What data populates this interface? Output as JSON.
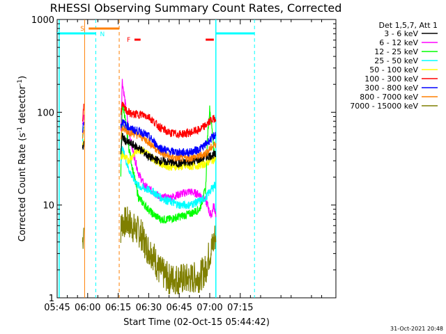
{
  "chart_data": {
    "type": "line",
    "title": "RHESSI Observing Summary Count Rates, Corrected",
    "xlabel": "Start Time (02-Oct-15 05:44:42)",
    "ylabel_main": "Corrected Count Rate (s",
    "ylabel_sup1": "-1",
    "ylabel_mid": " detector",
    "ylabel_sup2": "-1",
    "ylabel_end": ")",
    "yscale": "log",
    "ylim": [
      1,
      1000
    ],
    "xlim_min": [
      345,
      482
    ],
    "x_ticks": [
      {
        "min": 345,
        "label": "05:45"
      },
      {
        "min": 360,
        "label": "06:00"
      },
      {
        "min": 375,
        "label": "06:15"
      },
      {
        "min": 390,
        "label": "06:30"
      },
      {
        "min": 405,
        "label": "06:45"
      },
      {
        "min": 420,
        "label": "07:00"
      },
      {
        "min": 435,
        "label": "07:15"
      }
    ],
    "y_ticks": [
      {
        "value": 1,
        "label": "1"
      },
      {
        "value": 10,
        "label": "10"
      },
      {
        "value": 100,
        "label": "100"
      },
      {
        "value": 1000,
        "label": "1000"
      }
    ],
    "legend_header": "Det 1,5,7, Att 1",
    "legend_placement": "right",
    "footer_date": "31-Oct-2021 20:48",
    "series": [
      {
        "name": "3 - 6 keV",
        "color": "#000000",
        "x": [
          357.5,
          358.2,
          376.3,
          377,
          379,
          382,
          386,
          390,
          395,
          400,
          405,
          410,
          415,
          418,
          420,
          422,
          423
        ],
        "y": [
          40,
          46,
          38,
          55,
          48,
          45,
          40,
          33,
          30,
          29,
          28,
          29,
          31,
          33,
          34,
          35,
          34
        ]
      },
      {
        "name": "6 - 12 keV",
        "color": "#ff00ff",
        "x": [
          357.5,
          358.2,
          376.3,
          377,
          378,
          380,
          382,
          385,
          388,
          392,
          396,
          400,
          405,
          410,
          415,
          417,
          419,
          420,
          421,
          422,
          423
        ],
        "y": [
          70,
          100,
          60,
          220,
          150,
          70,
          40,
          22,
          16,
          14,
          12,
          12,
          13,
          14,
          13,
          12,
          10,
          8,
          8,
          10,
          8
        ]
      },
      {
        "name": "12 - 25 keV",
        "color": "#00ff00",
        "x": [
          357.5,
          358.2,
          376.3,
          377,
          378,
          380,
          382,
          385,
          388,
          392,
          396,
          400,
          405,
          410,
          415,
          418,
          419,
          420,
          421,
          422,
          423
        ],
        "y": [
          50,
          80,
          22,
          120,
          100,
          45,
          25,
          12,
          10,
          8,
          7,
          7,
          7.5,
          8,
          9,
          15,
          60,
          110,
          70,
          40,
          30
        ]
      },
      {
        "name": "25 - 50 keV",
        "color": "#00ffff",
        "x": [
          357.5,
          358.2,
          376.3,
          377,
          378,
          380,
          382,
          385,
          388,
          392,
          396,
          400,
          405,
          410,
          415,
          418,
          420,
          422,
          423
        ],
        "y": [
          50,
          70,
          30,
          40,
          35,
          25,
          20,
          16,
          15,
          14,
          12,
          11,
          10,
          10,
          11,
          12,
          14,
          16,
          17
        ]
      },
      {
        "name": "50 - 100 keV",
        "color": "#ffff00",
        "x": [
          357.5,
          358.2,
          376.3,
          377,
          378,
          380,
          382,
          385,
          388,
          392,
          396,
          400,
          405,
          410,
          415,
          418,
          420,
          422,
          423
        ],
        "y": [
          45,
          55,
          30,
          35,
          33,
          30,
          34,
          40,
          38,
          32,
          28,
          26,
          26,
          26,
          27,
          28,
          30,
          31,
          32
        ]
      },
      {
        "name": "100 - 300 keV",
        "color": "#ff0000",
        "x": [
          357.5,
          358.2,
          376.3,
          377,
          378,
          380,
          382,
          386,
          390,
          395,
          400,
          405,
          410,
          415,
          418,
          420,
          422,
          423
        ],
        "y": [
          80,
          125,
          100,
          120,
          110,
          100,
          95,
          95,
          90,
          70,
          60,
          58,
          60,
          65,
          72,
          80,
          85,
          88
        ]
      },
      {
        "name": "300 - 800 keV",
        "color": "#0000ff",
        "x": [
          357.5,
          358.2,
          376.3,
          377,
          378,
          380,
          382,
          386,
          390,
          395,
          400,
          405,
          410,
          415,
          418,
          420,
          422,
          423
        ],
        "y": [
          60,
          90,
          70,
          80,
          75,
          70,
          65,
          62,
          55,
          42,
          38,
          37,
          37,
          40,
          45,
          50,
          55,
          58
        ]
      },
      {
        "name": "800 - 7000 keV",
        "color": "#ff7f00",
        "x": [
          357.5,
          358.2,
          376.3,
          377,
          378,
          380,
          382,
          386,
          390,
          395,
          400,
          405,
          410,
          415,
          418,
          420,
          422,
          423
        ],
        "y": [
          55,
          70,
          55,
          68,
          65,
          62,
          60,
          55,
          48,
          38,
          33,
          32,
          32,
          34,
          36,
          40,
          44,
          46
        ]
      },
      {
        "name": "7000 - 15000 keV",
        "color": "#7f7f00",
        "x": [
          357.5,
          358.2,
          376.3,
          377,
          380,
          383,
          386,
          389,
          392,
          395,
          400,
          405,
          410,
          415,
          418,
          419,
          420,
          422,
          423
        ],
        "y": [
          4,
          6,
          5.5,
          6.5,
          6.5,
          5.5,
          5,
          3.5,
          3,
          2,
          1.6,
          1.6,
          1.6,
          1.7,
          2,
          2.6,
          3,
          4,
          5
        ]
      }
    ],
    "markers": {
      "saa_label": "S",
      "night_label": "N",
      "flare_label": "F",
      "orbit_cyan_segments": [
        [
          345,
          364
        ],
        [
          423,
          442
        ]
      ],
      "saa_segment": [
        360.5,
        375.5
      ],
      "flare_segments": [
        [
          383,
          386
        ],
        [
          418,
          422
        ]
      ],
      "vlines_cyan_solid": [
        346,
        423
      ],
      "vlines_cyan_dashed": [
        364,
        442
      ],
      "vlines_orange_solid": [
        358.5
      ],
      "vlines_orange_dashed": [
        375.5
      ]
    }
  }
}
